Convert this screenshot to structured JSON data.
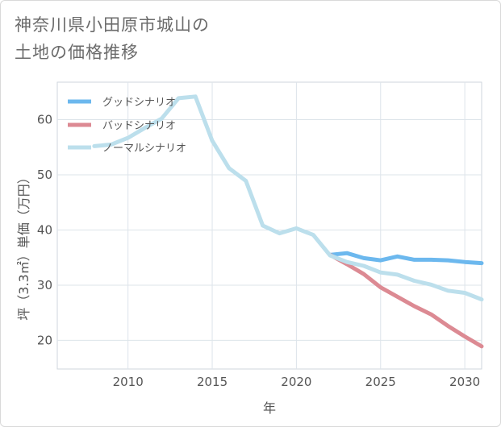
{
  "title": {
    "line1": "神奈川県小田原市城山の",
    "line2": "土地の価格推移"
  },
  "chart_data": {
    "type": "line",
    "xlabel": "年",
    "ylabel": "坪（3.3㎡）単価（万円）",
    "xlim": [
      2005.8,
      2031
    ],
    "ylim": [
      14.8,
      66.8
    ],
    "xticks": [
      2010,
      2015,
      2020,
      2025,
      2030
    ],
    "yticks": [
      20,
      30,
      40,
      50,
      60
    ],
    "legend_position": "top-left",
    "series": [
      {
        "name": "グッドシナリオ",
        "color": "#6cb8ee",
        "x": [
          2022,
          2023,
          2024,
          2025,
          2026,
          2027,
          2028,
          2029,
          2030,
          2031
        ],
        "values": [
          35.5,
          35.8,
          34.9,
          34.5,
          35.2,
          34.6,
          34.6,
          34.5,
          34.2,
          34.0
        ]
      },
      {
        "name": "バッドシナリオ",
        "color": "#dc8a93",
        "x": [
          2022,
          2023,
          2024,
          2025,
          2026,
          2027,
          2028,
          2029,
          2030,
          2031
        ],
        "values": [
          35.5,
          33.8,
          32.0,
          29.6,
          27.9,
          26.2,
          24.7,
          22.6,
          20.7,
          18.9
        ]
      },
      {
        "name": "ノーマルシナリオ",
        "color": "#bcdfec",
        "x": [
          2008,
          2009,
          2010,
          2011,
          2012,
          2013,
          2014,
          2015,
          2016,
          2017,
          2018,
          2019,
          2020,
          2021,
          2022,
          2023,
          2024,
          2025,
          2026,
          2027,
          2028,
          2029,
          2030,
          2031
        ],
        "values": [
          55.2,
          55.5,
          56.7,
          58.5,
          60.2,
          63.9,
          64.2,
          56.2,
          51.2,
          48.9,
          40.8,
          39.4,
          40.3,
          39.1,
          35.4,
          34.2,
          33.5,
          32.3,
          31.9,
          30.8,
          30.1,
          29.0,
          28.6,
          27.4
        ]
      }
    ]
  }
}
